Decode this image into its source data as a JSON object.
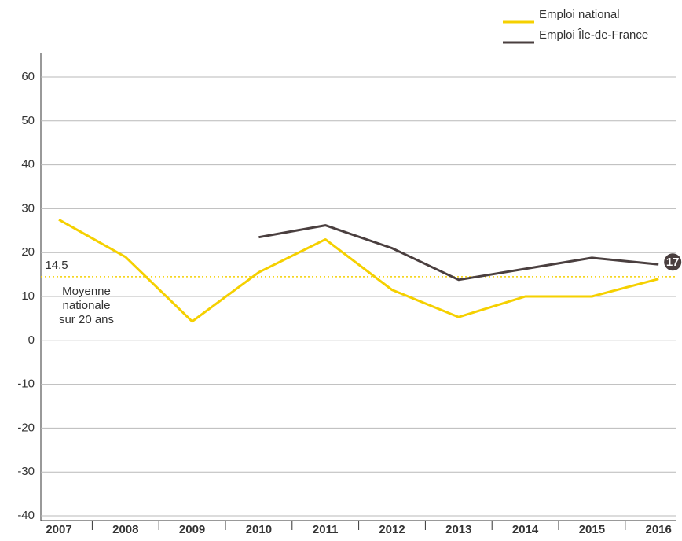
{
  "chart_data": {
    "type": "line",
    "categories": [
      "2007",
      "2008",
      "2009",
      "2010",
      "2011",
      "2012",
      "2013",
      "2014",
      "2015",
      "2016"
    ],
    "series": [
      {
        "name": "Emploi national",
        "color": "#f5d000",
        "values": [
          27.5,
          19,
          4.3,
          15.5,
          23,
          11.5,
          5.3,
          10,
          10,
          14
        ]
      },
      {
        "name": "Emploi Île-de-France",
        "color": "#4a3f3f",
        "values": [
          null,
          null,
          null,
          23.5,
          26.2,
          21,
          13.8,
          16.3,
          18.8,
          17.3
        ],
        "value_labels": [
          null,
          null,
          null,
          null,
          null,
          null,
          null,
          null,
          null,
          "17"
        ]
      }
    ],
    "ylim": [
      -40,
      60
    ],
    "yticks": [
      -40,
      -30,
      -20,
      -10,
      0,
      10,
      20,
      30,
      40,
      50,
      60
    ],
    "grid": true,
    "reference": {
      "value": 14.5,
      "label": "14,5",
      "text": [
        "Moyenne",
        "nationale",
        "sur 20 ans"
      ],
      "color": "#f5d000"
    },
    "legend": "top-right"
  }
}
